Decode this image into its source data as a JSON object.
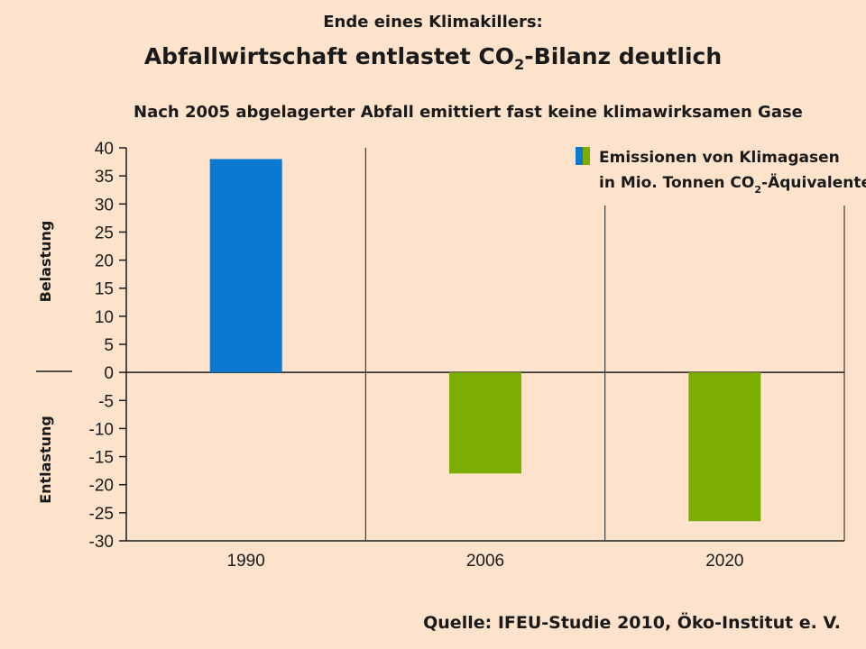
{
  "header": {
    "supertitle": "Ende eines Klimakillers:",
    "title_before": "Abfallwirtschaft entlastet CO",
    "title_sub": "2",
    "title_after": "-Bilanz deutlich",
    "subtitle": "Nach 2005 abgelagerter Abfall emittiert fast keine klimawirksamen Gase"
  },
  "source": "Quelle: IFEU-Studie 2010, Öko-Institut e. V.",
  "colors": {
    "background": "#fde3cb",
    "positive": "#0a79cf",
    "negative": "#7cad00"
  },
  "chart_data": {
    "type": "bar",
    "categories": [
      "1990",
      "2006",
      "2020"
    ],
    "values": [
      38,
      -18,
      -26.5
    ],
    "bar_colors": [
      "#0a79cf",
      "#7cad00",
      "#7cad00"
    ],
    "ylim": [
      -30,
      40
    ],
    "yticks": [
      40,
      35,
      30,
      25,
      20,
      15,
      10,
      5,
      0,
      -5,
      -10,
      -15,
      -20,
      -25,
      -30
    ],
    "side_label_positive": "Belastung",
    "side_label_negative": "Entlastung",
    "legend": {
      "line1": "Emissionen von Klimagasen",
      "line2_before": "in Mio. Tonnen CO",
      "line2_sub": "2",
      "line2_after": "-Äquivalente"
    },
    "legend_position": "top-right",
    "grid": false
  }
}
